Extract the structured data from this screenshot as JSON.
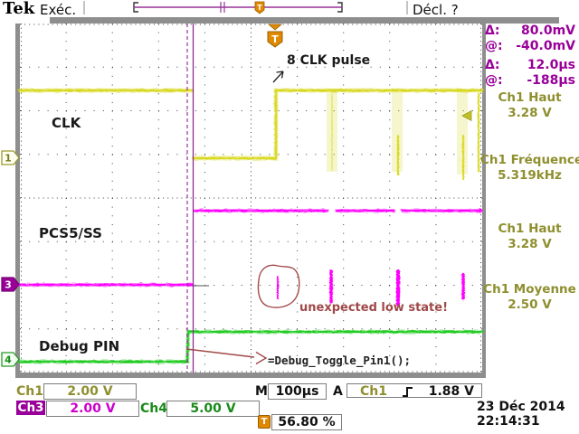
{
  "header": {
    "logo": "Tek",
    "acq_status": "Exéc.",
    "trigger_status": "Décl. ?"
  },
  "cursor_readout": {
    "rows": [
      {
        "label": "Δ:",
        "value": "80.0mV"
      },
      {
        "label": "@:",
        "value": "-40.0mV"
      },
      {
        "label": "Δ:",
        "value": "12.0µs"
      },
      {
        "label": "@:",
        "value": "-188µs"
      }
    ]
  },
  "measurements": {
    "rows": [
      {
        "label": "Ch1 Haut",
        "value": "3.28 V"
      },
      {
        "label": "Ch1 Fréquence",
        "value": "5.319kHz"
      },
      {
        "label": "Ch1 Haut",
        "value": "3.28 V"
      },
      {
        "label": "Ch1 Moyenne",
        "value": "2.50 V"
      }
    ]
  },
  "graticule_annotations": {
    "ch1_label": "CLK",
    "ch3_label": "PCS5/SS",
    "ch4_label": "Debug PIN",
    "pulse_note": "8 CLK pulse",
    "low_state_note": "unexpected low state!",
    "code_note": "=Debug_Toggle_Pin1();"
  },
  "channel_markers": {
    "ch1": "1",
    "ch3": "3",
    "ch4": "4",
    "trigger": "T"
  },
  "readouts": {
    "ch1": {
      "label": "Ch1",
      "scale": "2.00 V"
    },
    "ch3": {
      "label": "Ch3",
      "scale": "2.00 V"
    },
    "ch4": {
      "label": "Ch4",
      "scale": "5.00 V"
    },
    "timebase": {
      "label": "M",
      "value": "100µs"
    },
    "trigger": {
      "label": "A",
      "source": "Ch1",
      "level": "1.88 V"
    },
    "trigger_position": {
      "icon": "T",
      "value": "56.80 %"
    }
  },
  "datetime": {
    "date": "23 Déc 2014",
    "time": "22:14:31"
  },
  "colors": {
    "ch1_trace": "#d8d820",
    "ch1_text": "#8f8f2f",
    "ch3_trace": "#ff00ff",
    "ch3_dark": "#990099",
    "ch4_trace": "#22cc22",
    "ch4_text": "#1a8a1a",
    "trigger_orange": "#e08800",
    "annotation_red": "#a04848"
  },
  "waveforms": [
    {
      "channel": "Ch1",
      "name": "CLK",
      "scale": "2.00 V",
      "behavior": "high before cursors, drops low at trigger, then burst of 8 CLK pulses until right edge"
    },
    {
      "channel": "Ch3",
      "name": "PCS5/SS",
      "scale": "2.00 V",
      "behavior": "low before cursors, high afterwards with brief unexpected low-state glitches"
    },
    {
      "channel": "Ch4",
      "name": "Debug PIN",
      "scale": "5.00 V",
      "behavior": "low before cursor, toggles high at Debug_Toggle_Pin1() call"
    }
  ]
}
